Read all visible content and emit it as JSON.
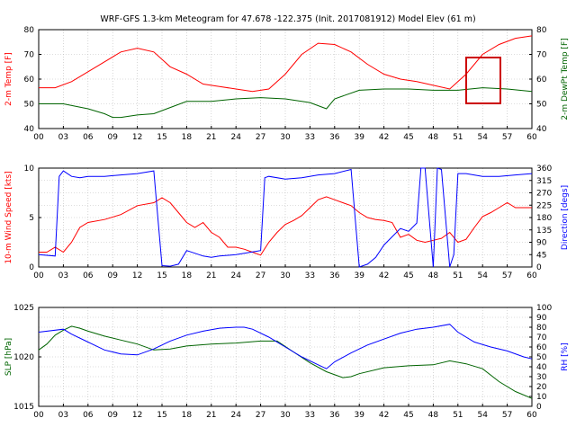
{
  "title": "WRF-GFS 1.3-km Meteogram for 47.678 -122.375 (Init. 2017081912) Model Elev (61 m)",
  "colors": {
    "red": "#ff0000",
    "green": "#006400",
    "blue": "#0000ff",
    "grid": "#bbbbbb",
    "highlight": "#cc0000"
  },
  "chart_data": [
    {
      "type": "line",
      "panel": "temperature",
      "x": [
        0,
        3,
        6,
        9,
        12,
        15,
        18,
        21,
        24,
        27,
        30,
        33,
        36,
        39,
        42,
        45,
        48,
        51,
        54,
        57,
        60
      ],
      "xticks": [
        "00",
        "03",
        "06",
        "09",
        "12",
        "15",
        "18",
        "21",
        "24",
        "27",
        "30",
        "33",
        "36",
        "39",
        "42",
        "45",
        "48",
        "51",
        "54",
        "57",
        "60"
      ],
      "ylabel_left": "2-m Temp [F]",
      "ylabel_right": "2-m DewPt Temp [F]",
      "ylim_left": [
        40,
        80
      ],
      "ylim_right": [
        40,
        80
      ],
      "yticks_left": [
        "40",
        "50",
        "60",
        "70",
        "80"
      ],
      "yticks_right": [
        "40",
        "50",
        "60",
        "70",
        "80"
      ],
      "series": [
        {
          "axis": "left",
          "color": "red",
          "values": [
            [
              0,
              56.5
            ],
            [
              2,
              56.5
            ],
            [
              4,
              59
            ],
            [
              6,
              63
            ],
            [
              8,
              67
            ],
            [
              10,
              71
            ],
            [
              12,
              72.5
            ],
            [
              14,
              71
            ],
            [
              16,
              65
            ],
            [
              18,
              62
            ],
            [
              20,
              58
            ],
            [
              22,
              57
            ],
            [
              24,
              56
            ],
            [
              26,
              55
            ],
            [
              28,
              56
            ],
            [
              30,
              62
            ],
            [
              32,
              70
            ],
            [
              34,
              74.5
            ],
            [
              36,
              74
            ],
            [
              38,
              71
            ],
            [
              40,
              66
            ],
            [
              42,
              62
            ],
            [
              44,
              60
            ],
            [
              46,
              59
            ],
            [
              48,
              57.5
            ],
            [
              50,
              56
            ],
            [
              52,
              62
            ],
            [
              54,
              70
            ],
            [
              56,
              74
            ],
            [
              58,
              76.5
            ],
            [
              60,
              77.5
            ]
          ]
        },
        {
          "axis": "right",
          "color": "green",
          "values": [
            [
              0,
              50
            ],
            [
              3,
              50
            ],
            [
              6,
              48
            ],
            [
              8,
              46
            ],
            [
              9,
              44.5
            ],
            [
              10,
              44.5
            ],
            [
              12,
              45.5
            ],
            [
              14,
              46
            ],
            [
              16,
              48.5
            ],
            [
              18,
              51
            ],
            [
              21,
              51
            ],
            [
              24,
              52
            ],
            [
              27,
              52.5
            ],
            [
              30,
              52
            ],
            [
              33,
              50.5
            ],
            [
              35,
              48
            ],
            [
              36,
              52
            ],
            [
              39,
              55.5
            ],
            [
              42,
              56
            ],
            [
              45,
              56
            ],
            [
              48,
              55.5
            ],
            [
              51,
              55.5
            ],
            [
              54,
              56.5
            ],
            [
              57,
              56
            ],
            [
              60,
              55
            ]
          ]
        }
      ]
    },
    {
      "type": "line",
      "panel": "wind",
      "x": [
        0,
        3,
        6,
        9,
        12,
        15,
        18,
        21,
        24,
        27,
        30,
        33,
        36,
        39,
        42,
        45,
        48,
        51,
        54,
        57,
        60
      ],
      "xticks": [
        "00",
        "03",
        "06",
        "09",
        "12",
        "15",
        "18",
        "21",
        "24",
        "27",
        "30",
        "33",
        "36",
        "39",
        "42",
        "45",
        "48",
        "51",
        "54",
        "57",
        "60"
      ],
      "ylabel_left": "10-m Wind Speed [kts]",
      "ylabel_right": "Direction [degs]",
      "ylim_left": [
        0,
        10
      ],
      "ylim_right": [
        0,
        360
      ],
      "yticks_left": [
        "0",
        "5",
        "10"
      ],
      "yticks_right": [
        "0",
        "45",
        "90",
        "135",
        "180",
        "225",
        "270",
        "315",
        "360"
      ],
      "series": [
        {
          "axis": "left",
          "color": "red",
          "values": [
            [
              0,
              1.5
            ],
            [
              1,
              1.5
            ],
            [
              2,
              2
            ],
            [
              3,
              1.5
            ],
            [
              4,
              2.5
            ],
            [
              5,
              4
            ],
            [
              6,
              4.5
            ],
            [
              8,
              4.8
            ],
            [
              10,
              5.3
            ],
            [
              12,
              6.2
            ],
            [
              14,
              6.5
            ],
            [
              15,
              7
            ],
            [
              16,
              6.5
            ],
            [
              17,
              5.5
            ],
            [
              18,
              4.5
            ],
            [
              19,
              4
            ],
            [
              20,
              4.5
            ],
            [
              21,
              3.5
            ],
            [
              22,
              3
            ],
            [
              23,
              2
            ],
            [
              24,
              2
            ],
            [
              25,
              1.8
            ],
            [
              26,
              1.5
            ],
            [
              27,
              1.2
            ],
            [
              28,
              2.5
            ],
            [
              29,
              3.5
            ],
            [
              30,
              4.3
            ],
            [
              31,
              4.7
            ],
            [
              32,
              5.2
            ],
            [
              33,
              6
            ],
            [
              34,
              6.8
            ],
            [
              35,
              7.1
            ],
            [
              36,
              6.8
            ],
            [
              37,
              6.5
            ],
            [
              38,
              6.2
            ],
            [
              39,
              5.5
            ],
            [
              40,
              5
            ],
            [
              41,
              4.8
            ],
            [
              42,
              4.7
            ],
            [
              43,
              4.5
            ],
            [
              44,
              3
            ],
            [
              45,
              3.3
            ],
            [
              46,
              2.7
            ],
            [
              47,
              2.5
            ],
            [
              48,
              2.7
            ],
            [
              49,
              2.9
            ],
            [
              50,
              3.5
            ],
            [
              51,
              2.5
            ],
            [
              52,
              2.8
            ],
            [
              53,
              4
            ],
            [
              54,
              5.1
            ],
            [
              55,
              5.5
            ],
            [
              56,
              6
            ],
            [
              57,
              6.5
            ],
            [
              58,
              6
            ],
            [
              60,
              6
            ]
          ]
        },
        {
          "axis": "right",
          "color": "blue",
          "values": [
            [
              0,
              45
            ],
            [
              2,
              40
            ],
            [
              2.5,
              330
            ],
            [
              3,
              350
            ],
            [
              4,
              330
            ],
            [
              5,
              325
            ],
            [
              6,
              330
            ],
            [
              8,
              330
            ],
            [
              10,
              335
            ],
            [
              12,
              340
            ],
            [
              14,
              350
            ],
            [
              15,
              5
            ],
            [
              16,
              3
            ],
            [
              17,
              10
            ],
            [
              18,
              60
            ],
            [
              19,
              50
            ],
            [
              20,
              40
            ],
            [
              21,
              35
            ],
            [
              22,
              40
            ],
            [
              24,
              45
            ],
            [
              26,
              55
            ],
            [
              27,
              60
            ],
            [
              27.5,
              325
            ],
            [
              28,
              330
            ],
            [
              30,
              320
            ],
            [
              32,
              325
            ],
            [
              34,
              335
            ],
            [
              36,
              340
            ],
            [
              38,
              355
            ],
            [
              39,
              0
            ],
            [
              40,
              10
            ],
            [
              41,
              35
            ],
            [
              42,
              80
            ],
            [
              43,
              110
            ],
            [
              44,
              140
            ],
            [
              45,
              130
            ],
            [
              46,
              160
            ],
            [
              46.5,
              360
            ],
            [
              47,
              360
            ],
            [
              48,
              0
            ],
            [
              48.5,
              360
            ],
            [
              49,
              355
            ],
            [
              50,
              0
            ],
            [
              50.5,
              45
            ],
            [
              51,
              340
            ],
            [
              52,
              340
            ],
            [
              54,
              330
            ],
            [
              56,
              330
            ],
            [
              58,
              335
            ],
            [
              60,
              340
            ]
          ]
        }
      ]
    },
    {
      "type": "line",
      "panel": "pressure",
      "x": [
        0,
        3,
        6,
        9,
        12,
        15,
        18,
        21,
        24,
        27,
        30,
        33,
        36,
        39,
        42,
        45,
        48,
        51,
        54,
        57,
        60
      ],
      "xticks": [
        "00",
        "03",
        "06",
        "09",
        "12",
        "15",
        "18",
        "21",
        "24",
        "27",
        "30",
        "33",
        "36",
        "39",
        "42",
        "45",
        "48",
        "51",
        "54",
        "57",
        "60"
      ],
      "ylabel_left": "SLP [hPa]",
      "ylabel_right": "RH [%]",
      "ylim_left": [
        1015,
        1025
      ],
      "ylim_right": [
        0,
        100
      ],
      "yticks_left": [
        "1015",
        "1020",
        "1025"
      ],
      "yticks_right": [
        "0",
        "10",
        "20",
        "30",
        "40",
        "50",
        "60",
        "70",
        "80",
        "90",
        "100"
      ],
      "series": [
        {
          "axis": "left",
          "color": "green",
          "values": [
            [
              0,
              1020.7
            ],
            [
              1,
              1021.3
            ],
            [
              2,
              1022.2
            ],
            [
              3,
              1022.7
            ],
            [
              4,
              1023.1
            ],
            [
              5,
              1022.9
            ],
            [
              6,
              1022.6
            ],
            [
              8,
              1022.1
            ],
            [
              10,
              1021.7
            ],
            [
              12,
              1021.3
            ],
            [
              14,
              1020.7
            ],
            [
              16,
              1020.8
            ],
            [
              18,
              1021.1
            ],
            [
              21,
              1021.3
            ],
            [
              24,
              1021.4
            ],
            [
              27,
              1021.6
            ],
            [
              29,
              1021.6
            ],
            [
              31,
              1020.5
            ],
            [
              33,
              1019.4
            ],
            [
              35,
              1018.5
            ],
            [
              37,
              1017.9
            ],
            [
              38,
              1018.0
            ],
            [
              39,
              1018.3
            ],
            [
              42,
              1018.9
            ],
            [
              45,
              1019.1
            ],
            [
              48,
              1019.2
            ],
            [
              50,
              1019.6
            ],
            [
              52,
              1019.3
            ],
            [
              54,
              1018.8
            ],
            [
              56,
              1017.5
            ],
            [
              58,
              1016.5
            ],
            [
              60,
              1015.8
            ]
          ]
        },
        {
          "axis": "right",
          "color": "blue",
          "values": [
            [
              0,
              75
            ],
            [
              3,
              78
            ],
            [
              4,
              73
            ],
            [
              6,
              65
            ],
            [
              8,
              57
            ],
            [
              10,
              53
            ],
            [
              12,
              52
            ],
            [
              14,
              58
            ],
            [
              16,
              66
            ],
            [
              18,
              72
            ],
            [
              20,
              76
            ],
            [
              22,
              79
            ],
            [
              24,
              80
            ],
            [
              25,
              80
            ],
            [
              26,
              78
            ],
            [
              28,
              70
            ],
            [
              30,
              60
            ],
            [
              32,
              50
            ],
            [
              34,
              42
            ],
            [
              35,
              38
            ],
            [
              36,
              45
            ],
            [
              38,
              54
            ],
            [
              40,
              62
            ],
            [
              42,
              68
            ],
            [
              44,
              74
            ],
            [
              46,
              78
            ],
            [
              48,
              80
            ],
            [
              50,
              83
            ],
            [
              51,
              75
            ],
            [
              53,
              65
            ],
            [
              55,
              60
            ],
            [
              57,
              56
            ],
            [
              59,
              50
            ],
            [
              60,
              48
            ]
          ]
        }
      ]
    }
  ]
}
